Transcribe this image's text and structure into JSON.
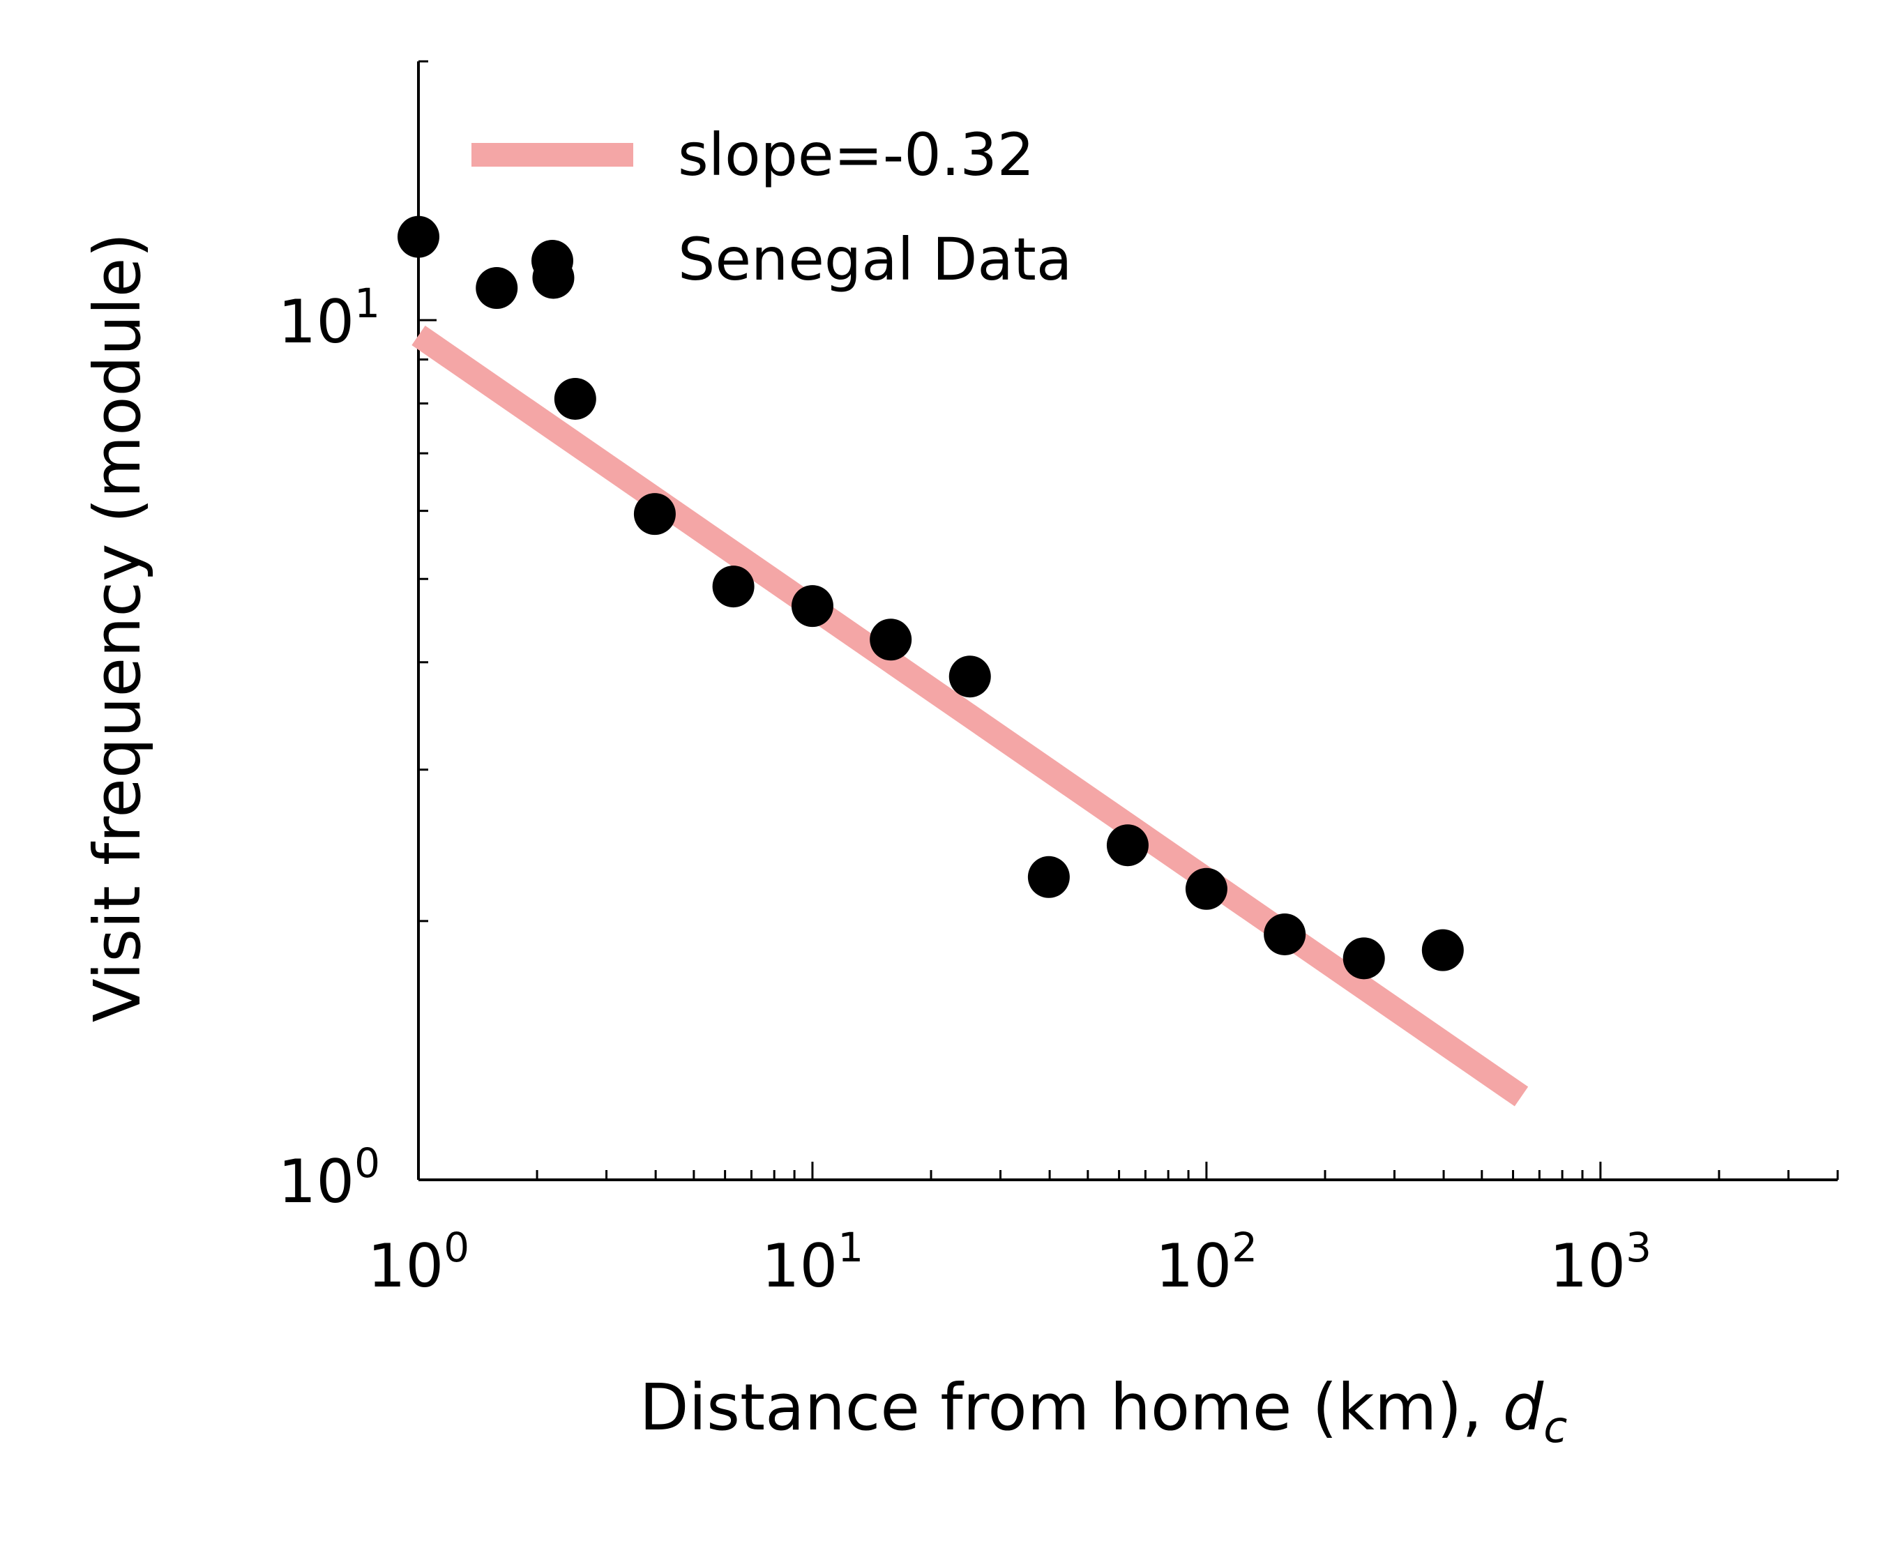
{
  "chart_data": {
    "type": "scatter",
    "title": "",
    "xlabel": "Distance from home (km), ",
    "xlabel_math": "d",
    "xlabel_math_sub": "c",
    "ylabel": "Visit frequency (module)",
    "xscale": "log",
    "yscale": "log",
    "xlim": [
      1,
      4000
    ],
    "ylim": [
      1,
      20
    ],
    "xticks": [
      {
        "value": 1,
        "base": "10",
        "exp": "0"
      },
      {
        "value": 10,
        "base": "10",
        "exp": "1"
      },
      {
        "value": 100,
        "base": "10",
        "exp": "2"
      },
      {
        "value": 1000,
        "base": "10",
        "exp": "3"
      }
    ],
    "yticks": [
      {
        "value": 1,
        "base": "10",
        "exp": "0"
      },
      {
        "value": 10,
        "base": "10",
        "exp": "1"
      }
    ],
    "grid": false,
    "legend_position": "top-left",
    "series": [
      {
        "name": "slope=-0.32",
        "kind": "line",
        "color": "#f4a6a6",
        "x": [
          1,
          630
        ],
        "y": [
          9.6,
          1.25
        ]
      },
      {
        "name": "Senegal Data",
        "kind": "scatter",
        "color": "#000000",
        "x": [
          1.0,
          1.58,
          2.2,
          2.5,
          3.98,
          6.3,
          10.0,
          15.8,
          25.1,
          39.8,
          63.1,
          100,
          158,
          251,
          398
        ],
        "y": [
          12.5,
          10.9,
          11.2,
          8.1,
          5.95,
          4.9,
          4.65,
          4.25,
          3.85,
          2.25,
          2.45,
          2.18,
          1.93,
          1.81,
          1.85
        ]
      }
    ]
  }
}
